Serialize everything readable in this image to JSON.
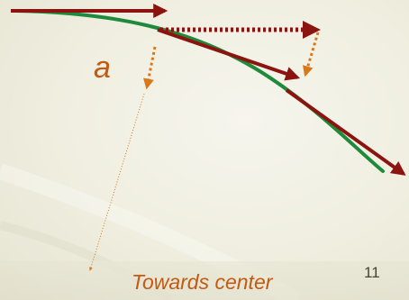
{
  "diagram": {
    "vector_label": "a",
    "caption": "Towards center"
  },
  "slide": {
    "page_number": "11"
  },
  "colors": {
    "curve": "#1f8a3c",
    "velocity_arrow": "#8b1410",
    "acceleration_arrow": "#d9781a",
    "text_accent": "#c25a12"
  }
}
